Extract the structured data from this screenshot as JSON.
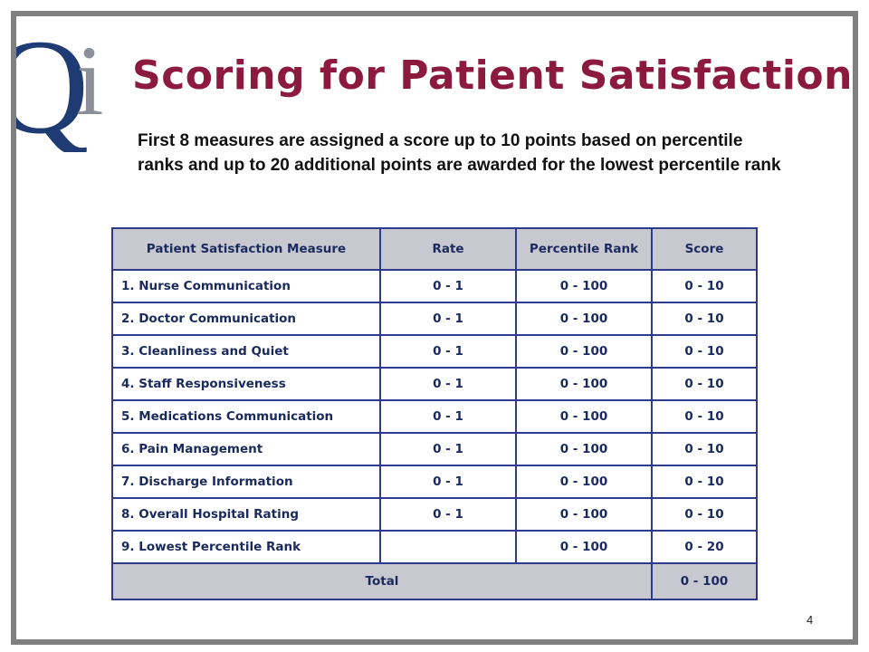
{
  "slide": {
    "title": "Scoring for Patient Satisfaction",
    "subtitle": "First 8 measures are assigned a score up to 10 points based on percentile ranks and up to 20 additional points are awarded for the lowest percentile rank",
    "page_number": "4",
    "logo_text": "Qi"
  },
  "table": {
    "headers": [
      "Patient Satisfaction Measure",
      "Rate",
      "Percentile Rank",
      "Score"
    ],
    "rows": [
      [
        "1. Nurse Communication",
        "0 - 1",
        "0 - 100",
        "0  - 10"
      ],
      [
        "2. Doctor Communication",
        "0 - 1",
        "0 - 100",
        "0  - 10"
      ],
      [
        "3. Cleanliness and Quiet",
        "0 - 1",
        "0 - 100",
        "0  - 10"
      ],
      [
        "4. Staff Responsiveness",
        "0 - 1",
        "0 - 100",
        "0  - 10"
      ],
      [
        "5. Medications Communication",
        "0 - 1",
        "0 - 100",
        "0  - 10"
      ],
      [
        "6. Pain Management",
        "0 - 1",
        "0 - 100",
        "0  - 10"
      ],
      [
        "7. Discharge Information",
        "0 - 1",
        "0 - 100",
        "0  - 10"
      ],
      [
        "8. Overall Hospital Rating",
        "0 - 1",
        "0 - 100",
        "0  - 10"
      ],
      [
        "9. Lowest Percentile Rank",
        "",
        "0 - 100",
        "0  - 20"
      ]
    ],
    "total_label": "Total",
    "total_score": "0  - 100"
  },
  "colors": {
    "title": "#8b1a3e",
    "logo_q": "#1f3b73",
    "logo_i": "#8a8f9a",
    "table_border": "#2e3a8c",
    "header_fill": "#c8c9d0"
  }
}
